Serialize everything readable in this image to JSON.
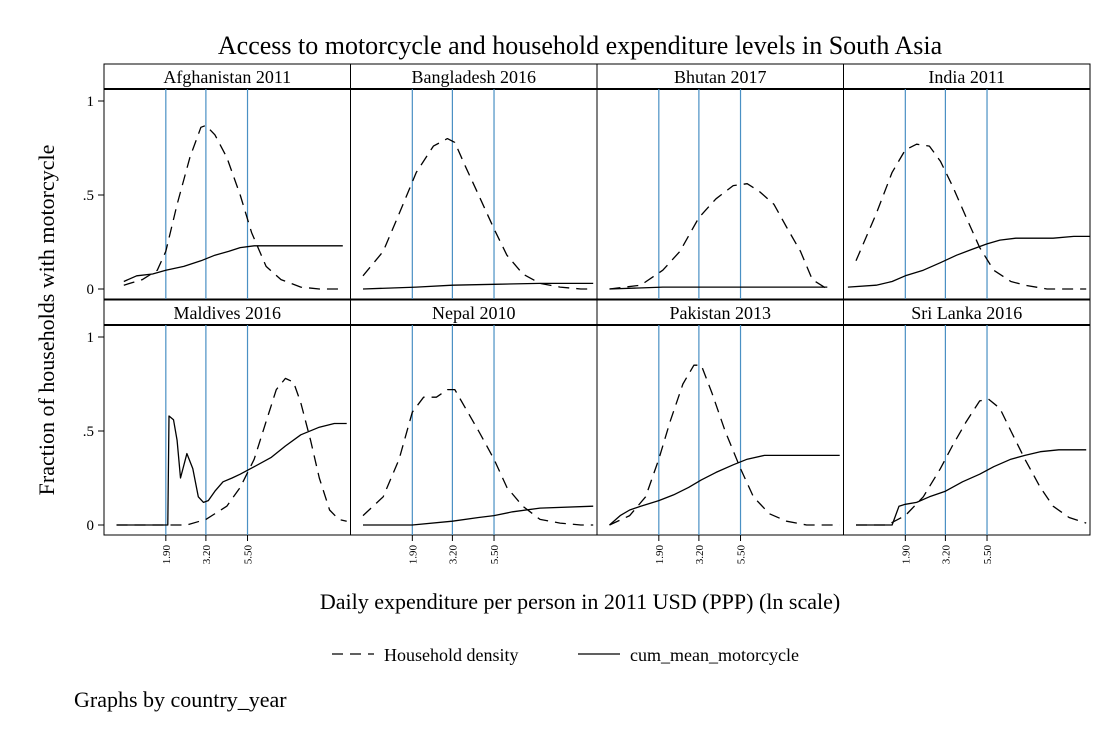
{
  "chart_data": {
    "type": "line",
    "title": "Access to motorcycle and household expenditure levels in South Asia",
    "xlabel": "Daily expenditure per person in 2011 USD (PPP) (ln scale)",
    "ylabel": "Fraction of households with motorcycle",
    "note": "Graphs by country_year",
    "x_scale": "log",
    "x_range": [
      0.85,
      21.0
    ],
    "ylim": [
      -0.05,
      1.08
    ],
    "y_ticks": [
      {
        "value": 0,
        "label": "0"
      },
      {
        "value": 0.5,
        "label": ".5"
      },
      {
        "value": 1,
        "label": "1"
      }
    ],
    "x_ticks": [
      {
        "value": 1.9,
        "label": "1.90"
      },
      {
        "value": 3.2,
        "label": "3.20"
      },
      {
        "value": 5.5,
        "label": "5.50"
      }
    ],
    "legend": {
      "position": "bottom",
      "entries": [
        {
          "label": "Household density",
          "style": "dashed"
        },
        {
          "label": "cum_mean_motorcycle",
          "style": "solid"
        }
      ]
    },
    "colors": {
      "reference_line": "#4a90c4",
      "series": "#000000"
    },
    "panels": [
      {
        "label": "Afghanistan 2011",
        "series": [
          {
            "name": "Household density",
            "x": [
              1.1,
              1.4,
              1.7,
              1.9,
              2.2,
              2.6,
              3.0,
              3.2,
              3.6,
              4.2,
              5.0,
              5.8,
              7.0,
              8.5,
              11.0,
              14.0,
              19.0
            ],
            "y": [
              0.02,
              0.05,
              0.1,
              0.2,
              0.45,
              0.7,
              0.86,
              0.87,
              0.82,
              0.7,
              0.5,
              0.3,
              0.12,
              0.05,
              0.01,
              0.0,
              0.0
            ]
          },
          {
            "name": "cum_mean_motorcycle",
            "x": [
              1.1,
              1.3,
              1.6,
              1.9,
              2.4,
              3.0,
              3.6,
              4.3,
              5.0,
              6.0,
              7.5,
              9.0,
              12.0,
              19.0
            ],
            "y": [
              0.04,
              0.07,
              0.08,
              0.1,
              0.12,
              0.15,
              0.18,
              0.2,
              0.22,
              0.23,
              0.23,
              0.23,
              0.23,
              0.23
            ]
          }
        ]
      },
      {
        "label": "Bangladesh 2016",
        "series": [
          {
            "name": "Household density",
            "x": [
              1.0,
              1.3,
              1.6,
              2.0,
              2.5,
              3.0,
              3.3,
              3.8,
              4.5,
              5.5,
              6.5,
              8.0,
              10.0,
              13.0,
              17.0,
              20.0
            ],
            "y": [
              0.07,
              0.2,
              0.4,
              0.62,
              0.76,
              0.8,
              0.78,
              0.65,
              0.5,
              0.32,
              0.18,
              0.08,
              0.03,
              0.01,
              0.0,
              0.0
            ]
          },
          {
            "name": "cum_mean_motorcycle",
            "x": [
              1.0,
              2.0,
              3.2,
              5.5,
              10.0,
              20.0
            ],
            "y": [
              0.0,
              0.01,
              0.02,
              0.025,
              0.03,
              0.03
            ]
          }
        ]
      },
      {
        "label": "Bhutan 2017",
        "series": [
          {
            "name": "Household density",
            "x": [
              1.0,
              1.5,
              2.0,
              2.5,
              3.2,
              4.0,
              5.0,
              6.0,
              7.0,
              8.5,
              10.0,
              12.0,
              14.0,
              17.0
            ],
            "y": [
              0.0,
              0.02,
              0.1,
              0.2,
              0.38,
              0.48,
              0.55,
              0.56,
              0.52,
              0.45,
              0.33,
              0.2,
              0.05,
              0.0
            ]
          },
          {
            "name": "cum_mean_motorcycle",
            "x": [
              1.0,
              2.0,
              3.2,
              5.5,
              10.0,
              17.0
            ],
            "y": [
              0.0,
              0.01,
              0.01,
              0.01,
              0.01,
              0.01
            ]
          }
        ]
      },
      {
        "label": "India 2011",
        "series": [
          {
            "name": "Household density",
            "x": [
              1.0,
              1.3,
              1.6,
              1.9,
              2.2,
              2.6,
              3.0,
              3.5,
              4.2,
              5.0,
              6.0,
              7.5,
              9.0,
              12.0,
              16.0,
              20.0
            ],
            "y": [
              0.15,
              0.4,
              0.62,
              0.74,
              0.77,
              0.76,
              0.68,
              0.55,
              0.38,
              0.22,
              0.1,
              0.04,
              0.02,
              0.0,
              0.0,
              0.0
            ]
          },
          {
            "name": "cum_mean_motorcycle",
            "x": [
              0.9,
              1.3,
              1.6,
              1.9,
              2.4,
              3.0,
              3.7,
              4.5,
              5.5,
              6.5,
              8.0,
              10.0,
              13.0,
              17.0,
              21.0
            ],
            "y": [
              0.01,
              0.02,
              0.04,
              0.07,
              0.1,
              0.14,
              0.18,
              0.21,
              0.24,
              0.26,
              0.27,
              0.27,
              0.27,
              0.28,
              0.28
            ]
          }
        ]
      },
      {
        "label": "Maldives 2016",
        "series": [
          {
            "name": "Household density",
            "x": [
              1.0,
              1.5,
              2.0,
              2.5,
              3.2,
              4.2,
              5.0,
              6.0,
              7.0,
              8.0,
              9.0,
              10.0,
              11.0,
              12.5,
              14.0,
              16.0,
              18.0,
              20.0
            ],
            "y": [
              0.0,
              0.0,
              0.0,
              0.0,
              0.03,
              0.1,
              0.2,
              0.35,
              0.55,
              0.72,
              0.78,
              0.76,
              0.65,
              0.45,
              0.25,
              0.08,
              0.03,
              0.02
            ]
          },
          {
            "name": "cum_mean_motorcycle",
            "x": [
              1.0,
              1.8,
              1.95,
              1.98,
              2.1,
              2.2,
              2.3,
              2.5,
              2.7,
              2.9,
              3.1,
              3.3,
              3.6,
              4.0,
              4.5,
              5.0,
              6.0,
              7.5,
              9.0,
              11.0,
              14.0,
              17.0,
              20.0
            ],
            "y": [
              0.0,
              0.0,
              0.0,
              0.58,
              0.56,
              0.45,
              0.25,
              0.38,
              0.3,
              0.15,
              0.12,
              0.13,
              0.18,
              0.23,
              0.25,
              0.27,
              0.31,
              0.36,
              0.42,
              0.48,
              0.52,
              0.54,
              0.54
            ]
          }
        ]
      },
      {
        "label": "Nepal 2010",
        "series": [
          {
            "name": "Household density",
            "x": [
              1.0,
              1.3,
              1.6,
              1.9,
              2.2,
              2.6,
              3.0,
              3.3,
              3.8,
              4.5,
              5.5,
              6.5,
              8.0,
              10.0,
              13.0,
              17.0,
              20.0
            ],
            "y": [
              0.05,
              0.15,
              0.35,
              0.6,
              0.68,
              0.68,
              0.72,
              0.72,
              0.62,
              0.5,
              0.35,
              0.2,
              0.1,
              0.03,
              0.01,
              0.0,
              0.0
            ]
          },
          {
            "name": "cum_mean_motorcycle",
            "x": [
              1.0,
              1.9,
              3.2,
              4.5,
              5.5,
              7.0,
              10.0,
              20.0
            ],
            "y": [
              0.0,
              0.0,
              0.02,
              0.04,
              0.05,
              0.07,
              0.09,
              0.1
            ]
          }
        ]
      },
      {
        "label": "Pakistan 2013",
        "series": [
          {
            "name": "Household density",
            "x": [
              1.0,
              1.3,
              1.6,
              1.9,
              2.2,
              2.6,
              3.0,
              3.3,
              3.8,
              4.5,
              5.5,
              6.5,
              8.0,
              10.0,
              13.0,
              17.0,
              20.0
            ],
            "y": [
              0.0,
              0.05,
              0.15,
              0.35,
              0.55,
              0.75,
              0.85,
              0.85,
              0.7,
              0.5,
              0.3,
              0.15,
              0.06,
              0.02,
              0.0,
              0.0,
              0.0
            ]
          },
          {
            "name": "cum_mean_motorcycle",
            "x": [
              1.0,
              1.15,
              1.3,
              1.5,
              1.9,
              2.3,
              2.8,
              3.3,
              4.0,
              5.0,
              6.0,
              7.5,
              9.0,
              12.0,
              16.0,
              20.0
            ],
            "y": [
              0.0,
              0.05,
              0.08,
              0.1,
              0.13,
              0.16,
              0.2,
              0.24,
              0.28,
              0.32,
              0.35,
              0.37,
              0.37,
              0.37,
              0.37,
              0.37
            ]
          }
        ]
      },
      {
        "label": "Sri Lanka 2016",
        "series": [
          {
            "name": "Household density",
            "x": [
              1.0,
              1.5,
              1.9,
              2.4,
              3.0,
              3.5,
              4.2,
              5.0,
              5.6,
              6.5,
              7.5,
              9.0,
              11.0,
              13.0,
              16.0,
              20.0
            ],
            "y": [
              0.0,
              0.0,
              0.05,
              0.15,
              0.3,
              0.42,
              0.55,
              0.66,
              0.67,
              0.62,
              0.5,
              0.35,
              0.2,
              0.1,
              0.04,
              0.01
            ]
          },
          {
            "name": "cum_mean_motorcycle",
            "x": [
              1.0,
              1.6,
              1.75,
              1.9,
              2.2,
              2.6,
              3.2,
              4.0,
              5.0,
              6.0,
              7.5,
              9.0,
              11.0,
              14.0,
              17.0,
              20.0
            ],
            "y": [
              0.0,
              0.0,
              0.1,
              0.11,
              0.12,
              0.15,
              0.18,
              0.23,
              0.27,
              0.31,
              0.35,
              0.37,
              0.39,
              0.4,
              0.4,
              0.4
            ]
          }
        ]
      }
    ]
  }
}
